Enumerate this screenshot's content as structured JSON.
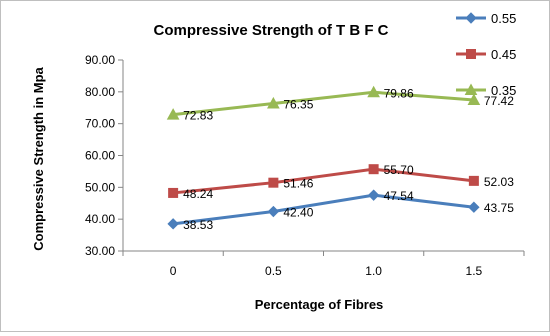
{
  "chart_data": {
    "type": "line",
    "title": "Compressive Strength of  T B F C",
    "xlabel": "Percentage of Fibres",
    "ylabel": "Compressive Strength in Mpa",
    "categories": [
      "0",
      "0.5",
      "1.0",
      "1.5"
    ],
    "ylim": [
      30,
      90
    ],
    "yticks": [
      "30.00",
      "40.00",
      "50.00",
      "60.00",
      "70.00",
      "80.00",
      "90.00"
    ],
    "grid": false,
    "legend_position": "top-right",
    "series": [
      {
        "name": "0.55",
        "marker": "diamond",
        "color": "#4a7ebb",
        "values": [
          38.53,
          42.4,
          47.54,
          43.75
        ],
        "labels": [
          "38.53",
          "42.40",
          "47.54",
          "43.75"
        ]
      },
      {
        "name": "0.45",
        "marker": "square",
        "color": "#be4b48",
        "values": [
          48.24,
          51.46,
          55.7,
          52.03
        ],
        "labels": [
          "48.24",
          "51.46",
          "55.70",
          "52.03"
        ]
      },
      {
        "name": "0.35",
        "marker": "triangle",
        "color": "#98b954",
        "values": [
          72.83,
          76.35,
          79.86,
          77.42
        ],
        "labels": [
          "72.83",
          "76.35",
          "79.86",
          "77.42"
        ]
      }
    ]
  }
}
